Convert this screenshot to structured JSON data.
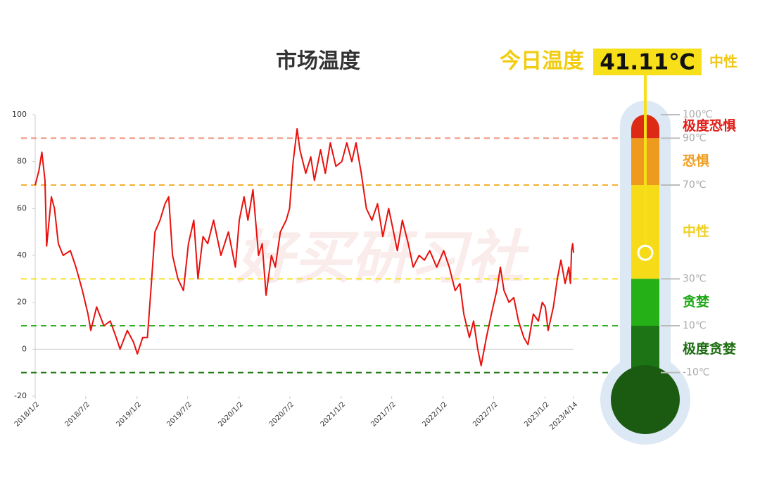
{
  "chart_data": {
    "type": "line",
    "title": "市场温度",
    "watermark": "好买研习社",
    "color": "#e8100c",
    "x": [
      "2018/1/2",
      "2018/1/15",
      "2018/1/26",
      "2018/2/6",
      "2018/2/12",
      "2018/3/1",
      "2018/3/12",
      "2018/3/26",
      "2018/4/12",
      "2018/5/8",
      "2018/5/28",
      "2018/6/20",
      "2018/7/10",
      "2018/7/20",
      "2018/8/10",
      "2018/9/5",
      "2018/9/28",
      "2018/10/19",
      "2018/11/2",
      "2018/11/28",
      "2018/12/20",
      "2019/1/3",
      "2019/1/22",
      "2019/2/8",
      "2019/2/22",
      "2019/3/7",
      "2019/3/25",
      "2019/4/12",
      "2019/4/25",
      "2019/5/9",
      "2019/5/28",
      "2019/6/17",
      "2019/7/5",
      "2019/7/24",
      "2019/8/8",
      "2019/8/26",
      "2019/9/12",
      "2019/10/3",
      "2019/10/29",
      "2019/11/25",
      "2019/12/20",
      "2020/1/3",
      "2020/1/20",
      "2020/2/3",
      "2020/2/21",
      "2020/3/12",
      "2020/3/25",
      "2020/4/8",
      "2020/4/27",
      "2020/5/11",
      "2020/5/29",
      "2020/6/19",
      "2020/7/1",
      "2020/7/14",
      "2020/7/28",
      "2020/8/7",
      "2020/8/28",
      "2020/9/15",
      "2020/9/28",
      "2020/10/20",
      "2020/11/6",
      "2020/11/24",
      "2020/12/14",
      "2021/1/4",
      "2021/1/22",
      "2021/2/9",
      "2021/2/24",
      "2021/3/15",
      "2021/4/2",
      "2021/4/22",
      "2021/5/12",
      "2021/5/31",
      "2021/6/21",
      "2021/7/5",
      "2021/7/22",
      "2021/8/9",
      "2021/8/30",
      "2021/9/17",
      "2021/10/8",
      "2021/10/27",
      "2021/11/15",
      "2021/12/10",
      "2022/1/4",
      "2022/1/24",
      "2022/2/14",
      "2022/3/3",
      "2022/3/17",
      "2022/4/6",
      "2022/4/21",
      "2022/5/6",
      "2022/5/18",
      "2022/6/6",
      "2022/6/24",
      "2022/7/13",
      "2022/7/26",
      "2022/8/8",
      "2022/8/26",
      "2022/9/12",
      "2022/9/29",
      "2022/10/18",
      "2022/11/2",
      "2022/11/21",
      "2022/12/9",
      "2022/12/23",
      "2023/1/3",
      "2023/1/13",
      "2023/2/1",
      "2023/2/15",
      "2023/2/28",
      "2023/3/15",
      "2023/3/28",
      "2023/4/3",
      "2023/4/7",
      "2023/4/11",
      "2023/4/14"
    ],
    "values": [
      70,
      76,
      84,
      72,
      44,
      65,
      60,
      45,
      40,
      42,
      35,
      25,
      15,
      8,
      18,
      10,
      12,
      5,
      0,
      8,
      3,
      -2,
      5,
      5,
      28,
      50,
      55,
      62,
      65,
      40,
      30,
      25,
      45,
      55,
      30,
      48,
      45,
      55,
      40,
      50,
      35,
      55,
      65,
      55,
      68,
      40,
      45,
      23,
      40,
      35,
      50,
      55,
      60,
      80,
      94,
      85,
      75,
      82,
      72,
      85,
      75,
      88,
      78,
      80,
      88,
      80,
      88,
      75,
      60,
      55,
      62,
      48,
      60,
      52,
      42,
      55,
      45,
      35,
      40,
      38,
      42,
      35,
      42,
      35,
      25,
      28,
      15,
      5,
      12,
      0,
      -7,
      5,
      15,
      25,
      35,
      25,
      20,
      22,
      12,
      5,
      2,
      15,
      12,
      20,
      18,
      8,
      18,
      30,
      38,
      28,
      35,
      28,
      42,
      45,
      41.11
    ],
    "xlim": [
      "2018/1/2",
      "2023/4/14"
    ],
    "xticks": [
      "2018/1/2",
      "2018/7/2",
      "2019/1/2",
      "2019/7/2",
      "2020/1/2",
      "2020/7/2",
      "2021/1/2",
      "2021/7/2",
      "2022/1/2",
      "2022/7/2",
      "2023/1/2",
      "2023/4/14"
    ],
    "ylim": [
      -20,
      100
    ],
    "yticks": [
      100,
      80,
      60,
      40,
      20,
      0,
      -20
    ],
    "reference_lines": [
      {
        "value": 90,
        "color": "#f0907a"
      },
      {
        "value": 70,
        "color": "#f5b030"
      },
      {
        "value": 30,
        "color": "#f5e020"
      },
      {
        "value": 10,
        "color": "#30b020"
      },
      {
        "value": -10,
        "color": "#1e7a10"
      }
    ],
    "today": {
      "label": "今日温度",
      "value": 41.11,
      "value_label": "41.11℃",
      "status": "中性"
    },
    "thermometer": {
      "ticks": [
        {
          "value": 100,
          "label": "100℃"
        },
        {
          "value": 90,
          "label": "90℃"
        },
        {
          "value": 70,
          "label": "70℃"
        },
        {
          "value": 30,
          "label": "30℃"
        },
        {
          "value": 10,
          "label": "10℃"
        },
        {
          "value": -10,
          "label": "-10℃"
        }
      ],
      "zones": [
        {
          "from": 90,
          "to": 100,
          "color": "#dd2a14",
          "label": "极度恐惧",
          "label_color": "#e0201a"
        },
        {
          "from": 70,
          "to": 90,
          "color": "#ee9a1e",
          "label": "恐惧",
          "label_color": "#f0a020"
        },
        {
          "from": 30,
          "to": 70,
          "color": "#f6dc18",
          "label": "中性",
          "label_color": "#f0d020"
        },
        {
          "from": 10,
          "to": 30,
          "color": "#25b018",
          "label": "贪婪",
          "label_color": "#20a818"
        },
        {
          "from": -10,
          "to": 10,
          "color": "#1c7414",
          "label": "极度贪婪",
          "label_color": "#1e6e12"
        }
      ]
    }
  }
}
